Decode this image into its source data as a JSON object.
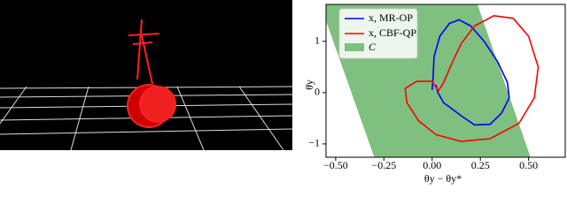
{
  "chart_data": {
    "type": "line",
    "xlabel": "θy − θy*",
    "ylabel": "θ̇y",
    "xlim": [
      -0.55,
      0.69
    ],
    "ylim": [
      -1.26,
      1.72
    ],
    "xticks": [
      {
        "value": -0.5,
        "label": "−0.50"
      },
      {
        "value": -0.25,
        "label": "−0.25"
      },
      {
        "value": 0,
        "label": "0.00"
      },
      0.25,
      {
        "value": 0.5,
        "label": "0.50"
      }
    ],
    "yticks": [
      {
        "value": -1,
        "label": "−1"
      },
      0,
      1
    ],
    "region": {
      "name": "C",
      "color": "#7fbf7f",
      "x": [
        -0.3,
        0.51,
        0.235,
        -0.58
      ],
      "y": [
        -1.26,
        -1.26,
        1.72,
        1.72
      ]
    },
    "series": [
      {
        "name": "x, MR-OP",
        "color": "#0000ff",
        "x": [
          0.0,
          0.005,
          0.01,
          0.04,
          0.09,
          0.14,
          0.2,
          0.27,
          0.34,
          0.39,
          0.4,
          0.36,
          0.3,
          0.22,
          0.15,
          0.09,
          0.06,
          0.03,
          0.02
        ],
        "y": [
          0.05,
          0.3,
          0.7,
          1.1,
          1.35,
          1.42,
          1.3,
          1.0,
          0.6,
          0.2,
          -0.1,
          -0.4,
          -0.62,
          -0.63,
          -0.45,
          -0.28,
          -0.2,
          0.0,
          0.15
        ]
      },
      {
        "name": "x, CBF-QP",
        "color": "#ff0000",
        "x": [
          0.03,
          0.0,
          -0.08,
          -0.14,
          -0.13,
          -0.07,
          0.02,
          0.15,
          0.3,
          0.45,
          0.53,
          0.55,
          0.5,
          0.42,
          0.32,
          0.22,
          0.15,
          0.1,
          0.06,
          0.03
        ],
        "y": [
          0.05,
          0.22,
          0.22,
          0.08,
          -0.2,
          -0.55,
          -0.82,
          -0.95,
          -0.9,
          -0.6,
          -0.1,
          0.5,
          1.1,
          1.45,
          1.5,
          1.3,
          0.95,
          0.55,
          0.2,
          0.02
        ]
      }
    ]
  }
}
